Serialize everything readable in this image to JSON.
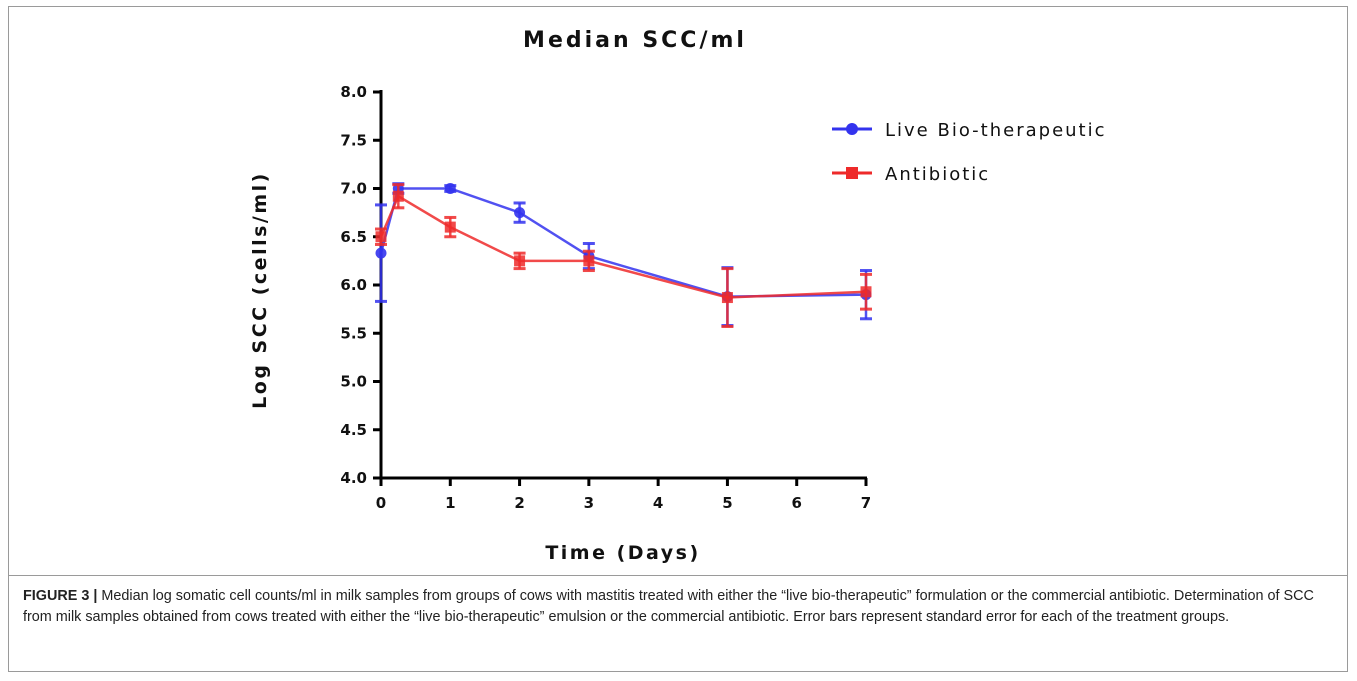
{
  "chart_data": {
    "type": "line",
    "title": "Median SCC/ml",
    "xlabel": "Time (Days)",
    "ylabel": "Log SCC (cells/ml)",
    "xlim": [
      0,
      7
    ],
    "ylim": [
      4.0,
      8.0
    ],
    "xticks": [
      0,
      1,
      2,
      3,
      4,
      5,
      6,
      7
    ],
    "yticks": [
      4.0,
      4.5,
      5.0,
      5.5,
      6.0,
      6.5,
      7.0,
      7.5,
      8.0
    ],
    "grid": false,
    "legend_position": "top-right",
    "series": [
      {
        "name": "Live Bio-therapeutic",
        "color": "#3333ee",
        "marker": "circle",
        "x": [
          0,
          0.25,
          1,
          2,
          3,
          5,
          7
        ],
        "y": [
          6.33,
          7.0,
          7.0,
          6.75,
          6.3,
          5.88,
          5.9
        ],
        "error": [
          0.5,
          0.05,
          0.03,
          0.1,
          0.13,
          0.3,
          0.25
        ]
      },
      {
        "name": "Antibiotic",
        "color": "#ee2a2a",
        "marker": "square",
        "x": [
          0,
          0.25,
          1,
          2,
          3,
          5,
          7
        ],
        "y": [
          6.5,
          6.92,
          6.6,
          6.25,
          6.25,
          5.87,
          5.93
        ],
        "error": [
          0.08,
          0.12,
          0.1,
          0.08,
          0.1,
          0.3,
          0.18
        ]
      }
    ]
  },
  "caption": {
    "label": "FIGURE 3 |",
    "text": " Median log somatic cell counts/ml in milk samples from groups of cows with mastitis treated with either the “live bio-therapeutic” formulation or the commercial antibiotic. Determination of SCC from milk samples obtained from cows treated with either the “live bio-therapeutic” emulsion or the commercial antibiotic. Error bars represent standard error for each of the treatment groups."
  }
}
